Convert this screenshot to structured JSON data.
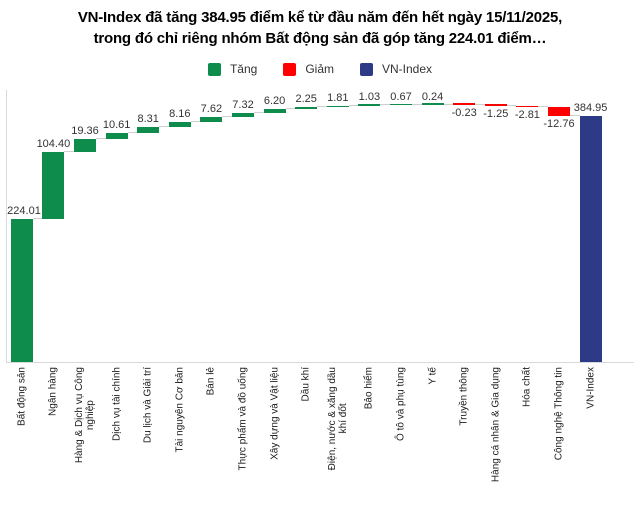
{
  "title": {
    "line1": "VN-Index đã tăng 384.95 điểm kể từ đầu năm đến hết ngày 15/11/2025,",
    "line2": "trong đó chỉ riêng nhóm Bất động sản đã góp tăng 224.01 điểm…"
  },
  "legend": [
    {
      "label": "Tăng",
      "color": "#0E8C4B"
    },
    {
      "label": "Giảm",
      "color": "#FF0000"
    },
    {
      "label": "VN-Index",
      "color": "#2D3A86"
    }
  ],
  "colors": {
    "increase": "#0E8C4B",
    "decrease": "#FF0000",
    "total": "#2D3A86",
    "axis_line": "#D9D9D9",
    "connector_line": "#CFCFCF",
    "value_label": "#333333"
  },
  "chart_data": {
    "type": "bar",
    "subtype": "waterfall",
    "title": "VN-Index đã tăng 384.95 điểm kể từ đầu năm đến hết ngày 15/11/2025, trong đó chỉ riêng nhóm Bất động sản đã góp tăng 224.01 điểm…",
    "xlabel": "",
    "ylabel": "",
    "ylim": [
      0,
      410
    ],
    "grid": false,
    "legend_position": "top",
    "legend_entries": [
      "Tăng",
      "Giảm",
      "VN-Index"
    ],
    "categories": [
      "Bất động sản",
      "Ngân hàng",
      "Hàng & Dịch vụ Công\nnghiệp",
      "Dịch vụ tài chính",
      "Du lịch và Giải trí",
      "Tài nguyên Cơ bản",
      "Bán lẻ",
      "Thực phẩm và đồ uống",
      "Xây dựng và Vật liệu",
      "Dầu khí",
      "Điện, nước & xăng dầu\nkhí đốt",
      "Bảo hiểm",
      "Ô tô và phụ tùng",
      "Y tế",
      "Truyền thông",
      "Hàng cá nhân & Gia dụng",
      "Hóa chất",
      "Công nghệ Thông tin",
      "VN-Index"
    ],
    "values": [
      224.01,
      104.4,
      19.36,
      10.61,
      8.31,
      8.16,
      7.62,
      7.32,
      6.2,
      2.25,
      1.81,
      1.03,
      0.67,
      0.24,
      -0.23,
      -1.25,
      -2.81,
      -12.76,
      384.95
    ],
    "kinds": [
      "inc",
      "inc",
      "inc",
      "inc",
      "inc",
      "inc",
      "inc",
      "inc",
      "inc",
      "inc",
      "inc",
      "inc",
      "inc",
      "inc",
      "dec",
      "dec",
      "dec",
      "dec",
      "total"
    ]
  }
}
